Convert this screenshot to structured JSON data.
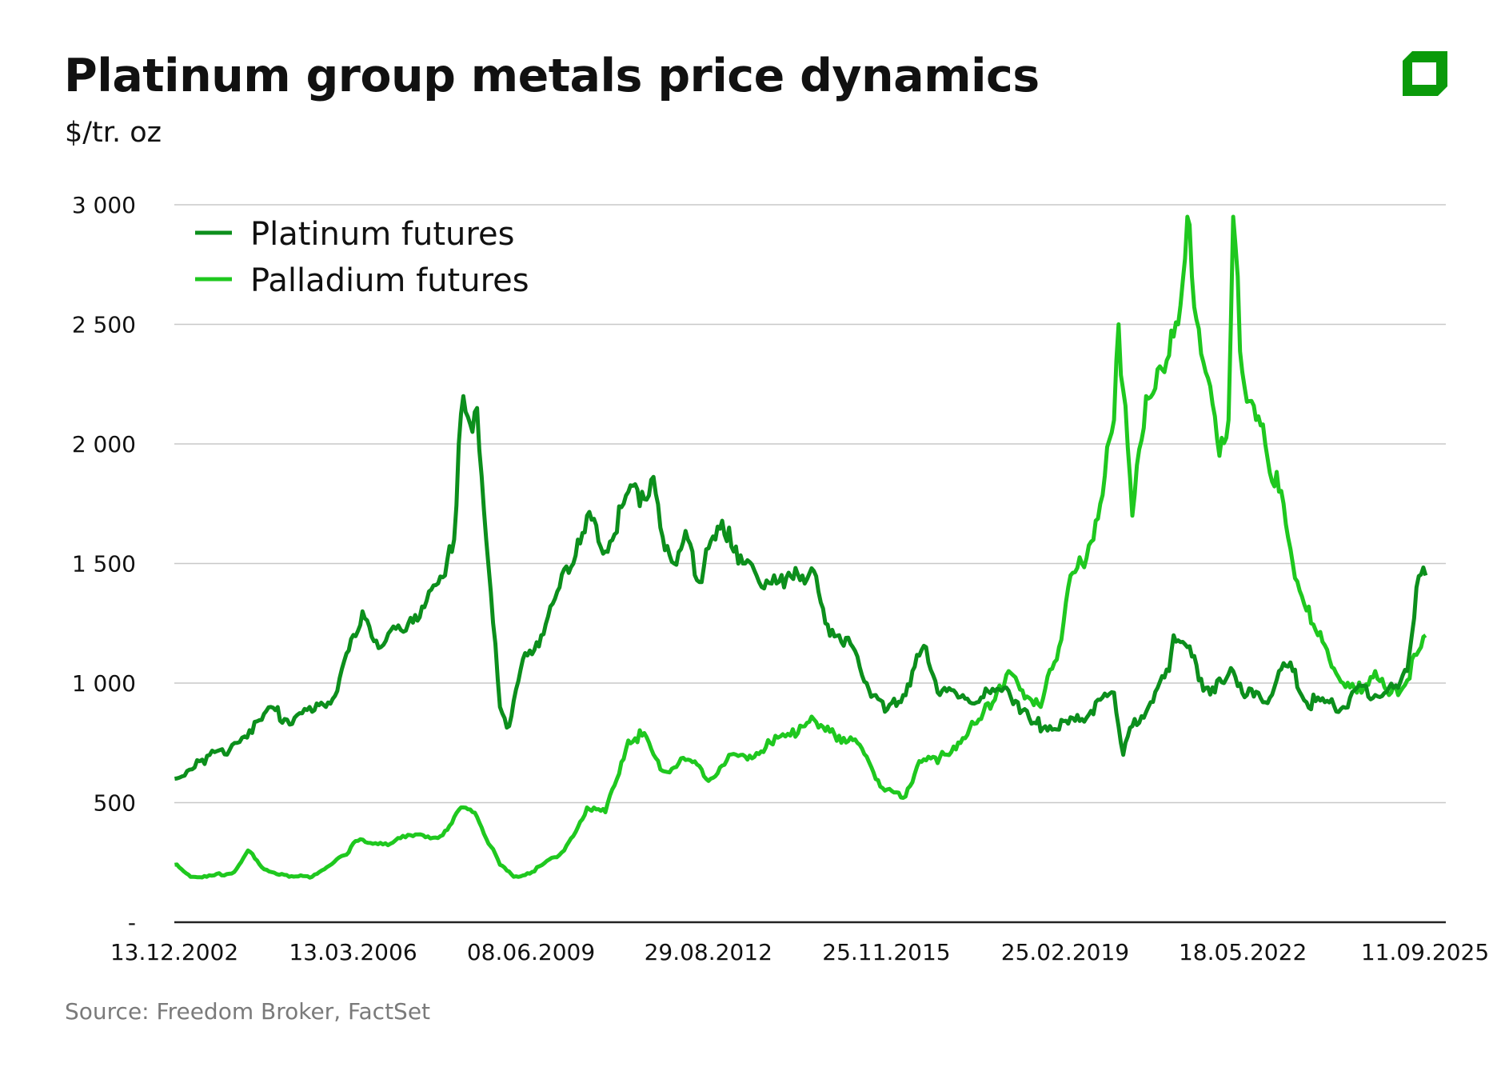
{
  "title": "Platinum group metals price dynamics",
  "subtitle": "$/tr. oz",
  "source": "Source: Freedom Broker, FactSet",
  "colors": {
    "platinum": "#0c8f1c",
    "palladium": "#1fc81f",
    "logo": "#0a9a0a",
    "grid": "#c8c8c8"
  },
  "chart_data": {
    "type": "line",
    "title": "Platinum group metals price dynamics",
    "ylabel": "$/tr. oz",
    "ylim": [
      0,
      3000
    ],
    "yticks": [
      0,
      500,
      1000,
      1500,
      2000,
      2500,
      3000
    ],
    "ytick_labels": [
      "-",
      "500",
      "1 000",
      "1 500",
      "2 000",
      "2 500",
      "3 000"
    ],
    "xlim": [
      "2002-12-13",
      "2025-09-11"
    ],
    "xtick_dates": [
      "2002-12-13",
      "2006-03-13",
      "2009-06-08",
      "2012-08-29",
      "2015-11-25",
      "2019-02-25",
      "2022-05-18",
      "2025-09-11"
    ],
    "xtick_labels": [
      "13.12.2002",
      "13.03.2006",
      "08.06.2009",
      "29.08.2012",
      "25.11.2015",
      "25.02.2019",
      "18.05.2022",
      "11.09.2025"
    ],
    "grid": true,
    "legend_position": "top-left",
    "series": [
      {
        "name": "Platinum futures",
        "points": [
          [
            "2002-12",
            600
          ],
          [
            "2003-06",
            680
          ],
          [
            "2003-12",
            720
          ],
          [
            "2004-06",
            840
          ],
          [
            "2004-09",
            900
          ],
          [
            "2004-12",
            850
          ],
          [
            "2005-06",
            880
          ],
          [
            "2005-09",
            900
          ],
          [
            "2005-12",
            1020
          ],
          [
            "2006-05",
            1300
          ],
          [
            "2006-09",
            1150
          ],
          [
            "2007-03",
            1250
          ],
          [
            "2007-06",
            1320
          ],
          [
            "2007-11",
            1450
          ],
          [
            "2008-01",
            1600
          ],
          [
            "2008-02",
            2000
          ],
          [
            "2008-03",
            2200
          ],
          [
            "2008-05",
            2050
          ],
          [
            "2008-06",
            2150
          ],
          [
            "2008-08",
            1600
          ],
          [
            "2008-11",
            900
          ],
          [
            "2009-01",
            820
          ],
          [
            "2009-04",
            1100
          ],
          [
            "2009-08",
            1200
          ],
          [
            "2009-12",
            1400
          ],
          [
            "2010-04",
            1600
          ],
          [
            "2010-06",
            1700
          ],
          [
            "2010-10",
            1550
          ],
          [
            "2011-02",
            1750
          ],
          [
            "2011-06",
            1800
          ],
          [
            "2011-08",
            1850
          ],
          [
            "2011-10",
            1650
          ],
          [
            "2012-01",
            1500
          ],
          [
            "2012-04",
            1600
          ],
          [
            "2012-06",
            1430
          ],
          [
            "2012-10",
            1600
          ],
          [
            "2013-01",
            1650
          ],
          [
            "2013-04",
            1500
          ],
          [
            "2013-07",
            1450
          ],
          [
            "2014-01",
            1400
          ],
          [
            "2014-05",
            1450
          ],
          [
            "2014-07",
            1480
          ],
          [
            "2014-10",
            1250
          ],
          [
            "2015-01",
            1200
          ],
          [
            "2015-04",
            1150
          ],
          [
            "2015-07",
            1000
          ],
          [
            "2015-11",
            880
          ],
          [
            "2016-03",
            950
          ],
          [
            "2016-05",
            1050
          ],
          [
            "2016-08",
            1150
          ],
          [
            "2016-11",
            950
          ],
          [
            "2017-04",
            950
          ],
          [
            "2017-08",
            940
          ],
          [
            "2018-01",
            980
          ],
          [
            "2018-04",
            920
          ],
          [
            "2018-07",
            830
          ],
          [
            "2018-11",
            820
          ],
          [
            "2019-03",
            830
          ],
          [
            "2019-06",
            850
          ],
          [
            "2019-10",
            930
          ],
          [
            "2020-01",
            960
          ],
          [
            "2020-03",
            700
          ],
          [
            "2020-05",
            820
          ],
          [
            "2020-09",
            920
          ],
          [
            "2021-01",
            1050
          ],
          [
            "2021-02",
            1200
          ],
          [
            "2021-05",
            1150
          ],
          [
            "2021-09",
            980
          ],
          [
            "2022-01",
            1000
          ],
          [
            "2022-03",
            1050
          ],
          [
            "2022-06",
            950
          ],
          [
            "2022-10",
            920
          ],
          [
            "2023-01",
            1050
          ],
          [
            "2023-04",
            1050
          ],
          [
            "2023-07",
            920
          ],
          [
            "2023-11",
            920
          ],
          [
            "2024-03",
            900
          ],
          [
            "2024-06",
            980
          ],
          [
            "2024-10",
            950
          ],
          [
            "2025-03",
            980
          ],
          [
            "2025-05",
            1050
          ],
          [
            "2025-07",
            1400
          ],
          [
            "2025-09",
            1450
          ]
        ]
      },
      {
        "name": "Palladium futures",
        "points": [
          [
            "2002-12",
            240
          ],
          [
            "2003-04",
            190
          ],
          [
            "2003-07",
            190
          ],
          [
            "2004-01",
            210
          ],
          [
            "2004-04",
            300
          ],
          [
            "2004-07",
            230
          ],
          [
            "2005-01",
            190
          ],
          [
            "2005-06",
            190
          ],
          [
            "2006-01",
            280
          ],
          [
            "2006-04",
            340
          ],
          [
            "2006-10",
            330
          ],
          [
            "2007-04",
            360
          ],
          [
            "2007-10",
            360
          ],
          [
            "2008-03",
            480
          ],
          [
            "2008-06",
            440
          ],
          [
            "2008-11",
            240
          ],
          [
            "2009-02",
            190
          ],
          [
            "2009-06",
            210
          ],
          [
            "2010-01",
            300
          ],
          [
            "2010-06",
            480
          ],
          [
            "2010-10",
            460
          ],
          [
            "2011-03",
            760
          ],
          [
            "2011-06",
            780
          ],
          [
            "2011-11",
            630
          ],
          [
            "2012-04",
            680
          ],
          [
            "2012-09",
            600
          ],
          [
            "2013-01",
            700
          ],
          [
            "2013-05",
            680
          ],
          [
            "2013-10",
            750
          ],
          [
            "2014-04",
            790
          ],
          [
            "2014-07",
            860
          ],
          [
            "2014-10",
            800
          ],
          [
            "2015-01",
            780
          ],
          [
            "2015-05",
            750
          ],
          [
            "2015-08",
            650
          ],
          [
            "2015-11",
            550
          ],
          [
            "2016-03",
            520
          ],
          [
            "2016-06",
            650
          ],
          [
            "2016-11",
            690
          ],
          [
            "2017-04",
            770
          ],
          [
            "2017-08",
            850
          ],
          [
            "2017-12",
            990
          ],
          [
            "2018-02",
            1050
          ],
          [
            "2018-05",
            970
          ],
          [
            "2018-09",
            900
          ],
          [
            "2019-01",
            1150
          ],
          [
            "2019-03",
            1400
          ],
          [
            "2019-06",
            1500
          ],
          [
            "2019-10",
            1750
          ],
          [
            "2020-01",
            2100
          ],
          [
            "2020-02",
            2500
          ],
          [
            "2020-05",
            1700
          ],
          [
            "2020-08",
            2200
          ],
          [
            "2020-12",
            2300
          ],
          [
            "2021-03",
            2500
          ],
          [
            "2021-05",
            2950
          ],
          [
            "2021-06",
            2700
          ],
          [
            "2021-09",
            2300
          ],
          [
            "2021-12",
            1950
          ],
          [
            "2022-02",
            2100
          ],
          [
            "2022-03",
            2950
          ],
          [
            "2022-05",
            2300
          ],
          [
            "2022-08",
            2100
          ],
          [
            "2022-10",
            2000
          ],
          [
            "2023-01",
            1800
          ],
          [
            "2023-04",
            1500
          ],
          [
            "2023-08",
            1250
          ],
          [
            "2023-12",
            1100
          ],
          [
            "2024-03",
            1000
          ],
          [
            "2024-06",
            960
          ],
          [
            "2024-10",
            1050
          ],
          [
            "2025-01",
            950
          ],
          [
            "2025-04",
            980
          ],
          [
            "2025-08",
            1150
          ],
          [
            "2025-09",
            1200
          ]
        ]
      }
    ]
  }
}
